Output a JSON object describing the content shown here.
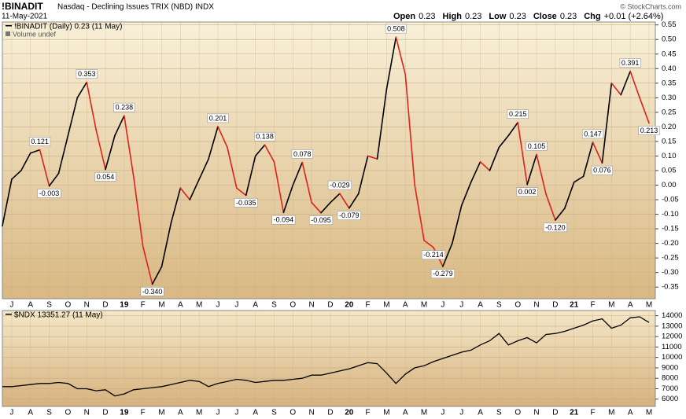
{
  "header": {
    "symbol": "!BINADIT",
    "name": "Nasdaq - Declining Issues TRIX (NBD)",
    "exchange": "INDX",
    "date": "11-May-2021",
    "quote": [
      {
        "label": "Open",
        "value": 0.23
      },
      {
        "label": "High",
        "value": 0.23
      },
      {
        "label": "Low",
        "value": 0.23
      },
      {
        "label": "Close",
        "value": 0.23
      },
      {
        "label": "Chg",
        "value": "+0.01 (+2.64%)"
      }
    ],
    "copyright": "© StockCharts.com"
  },
  "chart_data": [
    {
      "type": "line",
      "note": "Volume undef",
      "grid": true,
      "categories": [
        null,
        "J",
        null,
        "A",
        null,
        "S",
        null,
        "O",
        null,
        "N",
        null,
        "D",
        null,
        "19",
        null,
        "F",
        null,
        "M",
        null,
        "A",
        null,
        "M",
        null,
        "J",
        null,
        "J",
        null,
        "A",
        null,
        "S",
        null,
        "O",
        null,
        "N",
        null,
        "D",
        null,
        "20",
        null,
        "F",
        null,
        "M",
        null,
        "A",
        null,
        "M",
        null,
        "J",
        null,
        "J",
        null,
        "A",
        null,
        "S",
        null,
        "O",
        null,
        "N",
        null,
        "D",
        null,
        "21",
        null,
        "F",
        null,
        "M",
        null,
        "A",
        null,
        "M"
      ],
      "series": [
        {
          "name": "!BINADIT (Daily) 0.23 (11 May)",
          "up_color": "#000000",
          "down_color": "#e0201b",
          "values": [
            -0.14,
            0.02,
            0.05,
            0.11,
            0.121,
            -0.003,
            0.04,
            0.17,
            0.3,
            0.353,
            0.19,
            0.054,
            0.17,
            0.238,
            0.03,
            -0.21,
            -0.34,
            -0.28,
            -0.13,
            -0.01,
            -0.05,
            0.02,
            0.09,
            0.201,
            0.13,
            -0.01,
            -0.035,
            0.1,
            0.138,
            0.08,
            -0.094,
            0.0,
            0.078,
            -0.06,
            -0.095,
            -0.06,
            -0.029,
            -0.079,
            -0.03,
            0.1,
            0.09,
            0.33,
            0.508,
            0.38,
            0.0,
            -0.19,
            -0.214,
            -0.279,
            -0.2,
            -0.07,
            0.01,
            0.08,
            0.05,
            0.13,
            0.17,
            0.215,
            0.002,
            0.105,
            -0.03,
            -0.12,
            -0.08,
            0.01,
            0.03,
            0.147,
            0.076,
            0.35,
            0.31,
            0.391,
            0.3,
            0.213
          ],
          "value_labels": [
            null,
            null,
            null,
            null,
            "0.121",
            "-0.003",
            null,
            null,
            null,
            "0.353",
            null,
            "0.054",
            null,
            "0.238",
            null,
            null,
            "-0.340",
            null,
            null,
            null,
            null,
            null,
            null,
            "0.201",
            null,
            null,
            "-0.035",
            null,
            "0.138",
            null,
            "-0.094",
            null,
            "0.078",
            null,
            "-0.095",
            null,
            "-0.029",
            "-0.079",
            null,
            null,
            null,
            null,
            "0.508",
            null,
            null,
            null,
            "-0.214",
            "-0.279",
            null,
            null,
            null,
            null,
            null,
            null,
            null,
            "0.215",
            "0.002",
            "0.105",
            null,
            "-0.120",
            null,
            null,
            null,
            "0.147",
            "0.076",
            null,
            null,
            "0.391",
            null,
            "0.213"
          ]
        }
      ],
      "ylim": [
        -0.39,
        0.56
      ],
      "yticks": [
        0.55,
        {
          "value": 0.5,
          "label": "0.50"
        },
        0.45,
        {
          "value": 0.4,
          "label": "0.40"
        },
        0.35,
        {
          "value": 0.3,
          "label": "0.30"
        },
        0.25,
        {
          "value": 0.2,
          "label": "0.20"
        },
        0.15,
        {
          "value": 0.1,
          "label": "0.10"
        },
        0.05,
        {
          "value": 0,
          "label": "0.00"
        },
        -0.05,
        {
          "value": -0.1,
          "label": "-0.10"
        },
        -0.15,
        {
          "value": -0.2,
          "label": "-0.20"
        },
        -0.25,
        {
          "value": -0.3,
          "label": "-0.30"
        },
        -0.35
      ]
    },
    {
      "type": "line",
      "grid": true,
      "categories": [
        null,
        "J",
        null,
        "A",
        null,
        "S",
        null,
        "O",
        null,
        "N",
        null,
        "D",
        null,
        "19",
        null,
        "F",
        null,
        "M",
        null,
        "A",
        null,
        "M",
        null,
        "J",
        null,
        "J",
        null,
        "A",
        null,
        "S",
        null,
        "O",
        null,
        "N",
        null,
        "D",
        null,
        "20",
        null,
        "F",
        null,
        "M",
        null,
        "A",
        null,
        "M",
        null,
        "J",
        null,
        "J",
        null,
        "A",
        null,
        "S",
        null,
        "O",
        null,
        "N",
        null,
        "D",
        null,
        "21",
        null,
        "F",
        null,
        "M",
        null,
        "A",
        null,
        "M"
      ],
      "series": [
        {
          "name": "$NDX 13351.27 (11 May)",
          "color": "#000000",
          "values": [
            7200,
            7200,
            7300,
            7400,
            7500,
            7500,
            7600,
            7500,
            7000,
            7000,
            6800,
            6900,
            6300,
            6500,
            6900,
            7000,
            7100,
            7200,
            7400,
            7600,
            7800,
            7700,
            7200,
            7500,
            7700,
            7900,
            7800,
            7600,
            7700,
            7800,
            7800,
            7900,
            8000,
            8300,
            8300,
            8500,
            8700,
            8900,
            9200,
            9500,
            9400,
            8500,
            7500,
            8400,
            9000,
            9200,
            9600,
            9900,
            10200,
            10500,
            10700,
            11200,
            11600,
            12300,
            11200,
            11600,
            11900,
            11400,
            12200,
            12300,
            12500,
            12800,
            13100,
            13500,
            13700,
            12800,
            13100,
            13800,
            13900,
            13351.27
          ]
        }
      ],
      "ylim": [
        5300,
        14500
      ],
      "yticks": [
        6000,
        7000,
        8000,
        9000,
        10000,
        11000,
        12000,
        13000,
        14000
      ]
    }
  ]
}
